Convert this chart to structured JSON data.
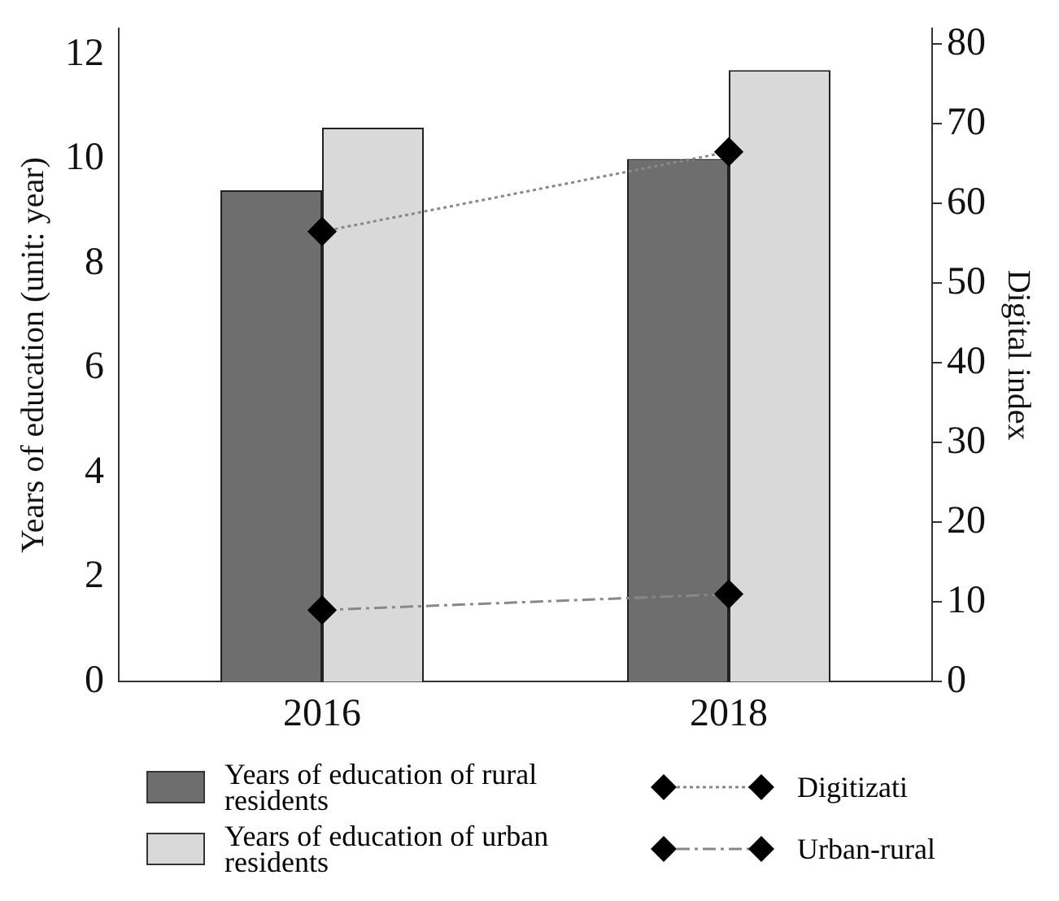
{
  "chart_data": {
    "type": "bar",
    "categories": [
      "2016",
      "2018"
    ],
    "ylabel": "Years of education (unit: year)",
    "y2label": "Digital index",
    "series": [
      {
        "name": "Years of education of rural residents",
        "color": "#6e6e6e",
        "values": [
          9.4,
          10.0
        ]
      },
      {
        "name": "Years of education of urban residents",
        "color": "#d9d9d9",
        "values": [
          10.6,
          11.7
        ]
      },
      {
        "name": "Digitizati",
        "type": "line",
        "axis": "y2",
        "color": "#000000",
        "line_style": "dotted",
        "marker": "diamond",
        "values": [
          56.5,
          66.5
        ]
      },
      {
        "name": "Urban-rural",
        "type": "line",
        "axis": "y2",
        "color": "#000000",
        "line_style": "dashed",
        "marker": "diamond",
        "values": [
          9,
          11
        ]
      }
    ],
    "ylim": [
      0,
      12.5
    ],
    "yticks": [
      0,
      2,
      4,
      6,
      8,
      10,
      12
    ],
    "y2lim": [
      0,
      82
    ],
    "y2ticks": [
      0,
      10,
      20,
      30,
      40,
      50,
      60,
      70,
      80
    ],
    "grid": false,
    "legend": "bottom"
  }
}
